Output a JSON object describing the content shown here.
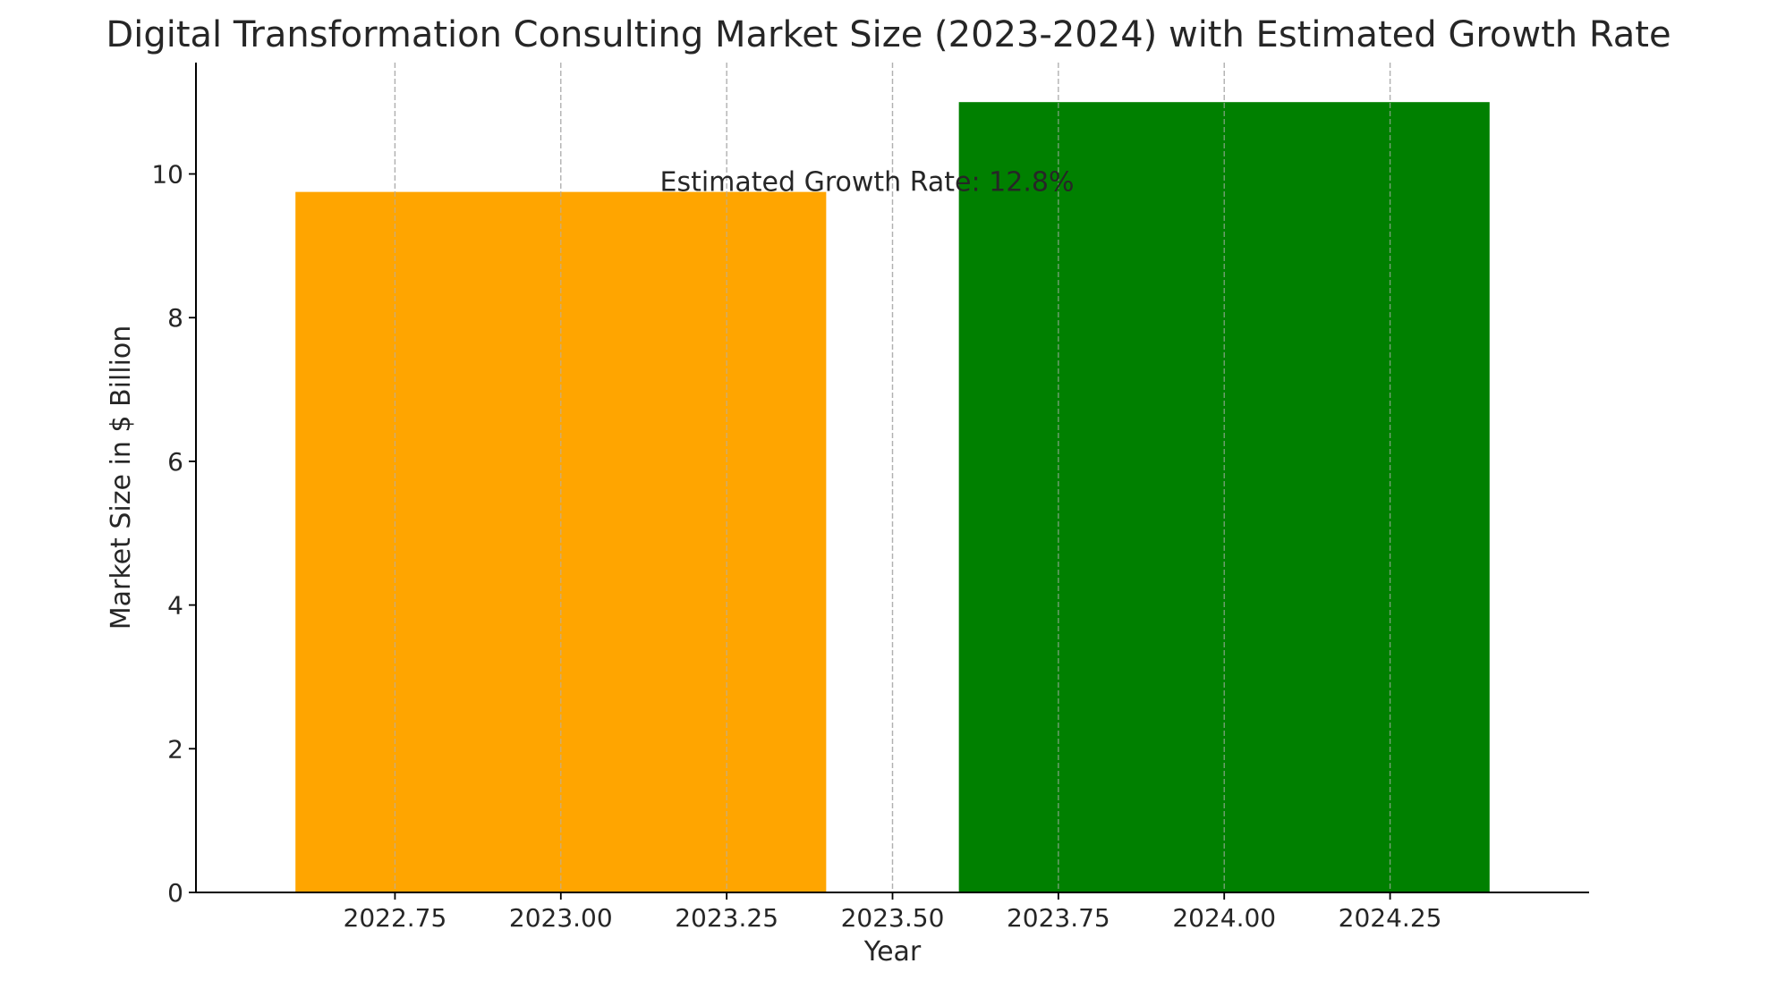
{
  "chart_data": {
    "type": "bar",
    "title": "Digital Transformation Consulting Market Size (2023-2024) with Estimated Growth Rate",
    "xlabel": "Year",
    "ylabel": "Market Size in $ Billion",
    "categories": [
      "2023",
      "2024"
    ],
    "x": [
      2023,
      2024
    ],
    "values": [
      9.75,
      11.0
    ],
    "bar_colors": [
      "#FFA500",
      "#008000"
    ],
    "bar_width": 0.8,
    "xlim": [
      2022.45,
      2024.55
    ],
    "ylim": [
      0,
      11.55
    ],
    "xticks": [
      2022.75,
      2023.0,
      2023.25,
      2023.5,
      2023.75,
      2024.0,
      2024.25
    ],
    "xtick_labels": [
      "2022.75",
      "2023.00",
      "2023.25",
      "2023.50",
      "2023.75",
      "2024.00",
      "2024.25"
    ],
    "yticks": [
      0,
      2,
      4,
      6,
      8,
      10
    ],
    "ytick_labels": [
      "0",
      "2",
      "4",
      "6",
      "8",
      "10"
    ],
    "grid": {
      "x": true,
      "y": false,
      "style": "dashed",
      "color": "#b0b0b0"
    },
    "annotations": [
      {
        "text": "Estimated Growth Rate: 12.8%",
        "x": 2023.5,
        "y": 9.8
      }
    ]
  }
}
